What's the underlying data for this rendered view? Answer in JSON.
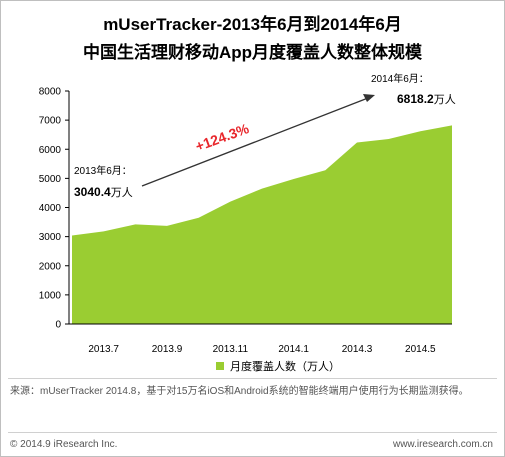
{
  "title_line1": "mUserTracker-2013年6月到2014年6月",
  "title_line2": "中国生活理财移动App月度覆盖人数整体规模",
  "chart_data": {
    "type": "area",
    "title": "mUserTracker-2013年6月到2014年6月 中国生活理财移动App月度覆盖人数整体规模",
    "x": [
      "2013.6",
      "2013.7",
      "2013.8",
      "2013.9",
      "2013.10",
      "2013.11",
      "2013.12",
      "2014.1",
      "2014.2",
      "2014.3",
      "2014.4",
      "2014.5",
      "2014.6"
    ],
    "x_tick_labels": [
      "2013.7",
      "2013.9",
      "2013.11",
      "2014.1",
      "2014.3",
      "2014.5"
    ],
    "series": [
      {
        "name": "月度覆盖人数（万人）",
        "color": "#9ACD32",
        "values": [
          3040.4,
          3180,
          3420,
          3370,
          3650,
          4200,
          4650,
          4980,
          5280,
          6230,
          6350,
          6620,
          6818.2
        ]
      }
    ],
    "y_ticks": [
      0,
      1000,
      2000,
      3000,
      4000,
      5000,
      6000,
      7000,
      8000
    ],
    "ylim": [
      0,
      8000
    ],
    "grid": false,
    "legend_position": "bottom",
    "annotations": {
      "start_label": "2013年6月：",
      "start_value": "3040.4",
      "start_unit": "万人",
      "end_label": "2014年6月：",
      "end_value": "6818.2",
      "end_unit": "万人",
      "growth": "+124.3%"
    }
  },
  "legend_label": "月度覆盖人数（万人）",
  "source_text": "来源：mUserTracker 2014.8，基于对15万名iOS和Android系统的智能终端用户使用行为长期监测获得。",
  "footer_left": "© 2014.9 iResearch Inc.",
  "footer_right": "www.iresearch.com.cn",
  "colors": {
    "area": "#9ACD32",
    "growth_text": "#e8272c",
    "axis": "#000000"
  }
}
